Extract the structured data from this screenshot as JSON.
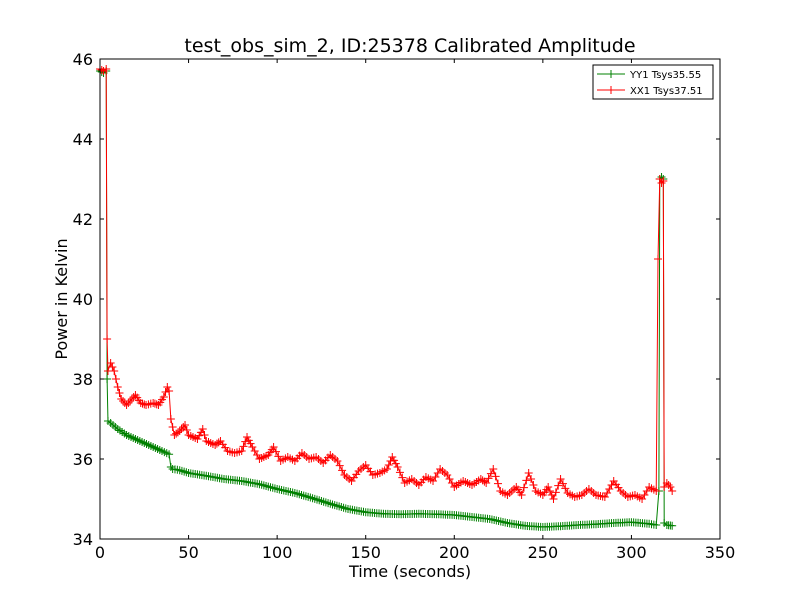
{
  "chart_data": {
    "type": "line",
    "title": "test_obs_sim_2, ID:25378 Calibrated Amplitude",
    "xlabel": "Time (seconds)",
    "ylabel": "Power in Kelvin",
    "xlim": [
      0,
      350
    ],
    "ylim": [
      34,
      46
    ],
    "xticks": [
      0,
      50,
      100,
      150,
      200,
      250,
      300,
      350
    ],
    "yticks": [
      34,
      36,
      38,
      40,
      42,
      44,
      46
    ],
    "grid": false,
    "legend_position": "top-right",
    "marker": "+",
    "series": [
      {
        "name": "YY1 Tsys35.55",
        "color": "#008000",
        "points": [
          [
            0,
            45.7
          ],
          [
            2,
            45.65
          ],
          [
            3.5,
            45.7
          ],
          [
            4,
            38.0
          ],
          [
            4.5,
            36.95
          ],
          [
            6,
            36.9
          ],
          [
            10,
            36.75
          ],
          [
            15,
            36.6
          ],
          [
            20,
            36.5
          ],
          [
            25,
            36.4
          ],
          [
            30,
            36.3
          ],
          [
            35,
            36.2
          ],
          [
            39,
            36.12
          ],
          [
            40,
            35.8
          ],
          [
            41,
            35.75
          ],
          [
            45,
            35.72
          ],
          [
            50,
            35.65
          ],
          [
            60,
            35.58
          ],
          [
            70,
            35.5
          ],
          [
            80,
            35.45
          ],
          [
            90,
            35.37
          ],
          [
            100,
            35.25
          ],
          [
            110,
            35.15
          ],
          [
            120,
            35.02
          ],
          [
            130,
            34.88
          ],
          [
            140,
            34.75
          ],
          [
            150,
            34.67
          ],
          [
            160,
            34.63
          ],
          [
            170,
            34.62
          ],
          [
            180,
            34.63
          ],
          [
            190,
            34.62
          ],
          [
            200,
            34.6
          ],
          [
            210,
            34.55
          ],
          [
            220,
            34.5
          ],
          [
            230,
            34.4
          ],
          [
            240,
            34.33
          ],
          [
            250,
            34.3
          ],
          [
            260,
            34.32
          ],
          [
            270,
            34.35
          ],
          [
            280,
            34.37
          ],
          [
            290,
            34.4
          ],
          [
            300,
            34.42
          ],
          [
            310,
            34.38
          ],
          [
            314,
            34.35
          ],
          [
            315.5,
            35.2
          ],
          [
            316,
            43.0
          ],
          [
            317,
            43.05
          ],
          [
            318,
            43.0
          ],
          [
            318.5,
            34.4
          ],
          [
            320,
            34.35
          ],
          [
            323,
            34.33
          ]
        ]
      },
      {
        "name": "XX1 Tsys37.51",
        "color": "#ff0000",
        "points": [
          [
            0,
            45.75
          ],
          [
            2,
            45.7
          ],
          [
            3.5,
            45.75
          ],
          [
            4,
            39.0
          ],
          [
            4.5,
            38.2
          ],
          [
            6,
            38.4
          ],
          [
            8,
            38.2
          ],
          [
            10,
            37.8
          ],
          [
            12,
            37.5
          ],
          [
            15,
            37.35
          ],
          [
            18,
            37.5
          ],
          [
            20,
            37.6
          ],
          [
            23,
            37.4
          ],
          [
            26,
            37.35
          ],
          [
            30,
            37.4
          ],
          [
            33,
            37.35
          ],
          [
            36,
            37.55
          ],
          [
            38,
            37.8
          ],
          [
            39,
            37.7
          ],
          [
            40,
            37.0
          ],
          [
            42,
            36.6
          ],
          [
            45,
            36.7
          ],
          [
            48,
            36.85
          ],
          [
            50,
            36.6
          ],
          [
            55,
            36.5
          ],
          [
            58,
            36.75
          ],
          [
            60,
            36.45
          ],
          [
            65,
            36.35
          ],
          [
            68,
            36.45
          ],
          [
            72,
            36.2
          ],
          [
            76,
            36.15
          ],
          [
            80,
            36.2
          ],
          [
            83,
            36.55
          ],
          [
            86,
            36.3
          ],
          [
            90,
            36.0
          ],
          [
            95,
            36.1
          ],
          [
            98,
            36.3
          ],
          [
            102,
            35.95
          ],
          [
            106,
            36.05
          ],
          [
            110,
            35.95
          ],
          [
            114,
            36.15
          ],
          [
            118,
            36.0
          ],
          [
            122,
            36.05
          ],
          [
            126,
            35.9
          ],
          [
            130,
            36.1
          ],
          [
            134,
            35.95
          ],
          [
            138,
            35.6
          ],
          [
            142,
            35.45
          ],
          [
            146,
            35.7
          ],
          [
            150,
            35.85
          ],
          [
            154,
            35.6
          ],
          [
            158,
            35.65
          ],
          [
            162,
            35.75
          ],
          [
            165,
            36.05
          ],
          [
            168,
            35.8
          ],
          [
            172,
            35.4
          ],
          [
            176,
            35.5
          ],
          [
            180,
            35.35
          ],
          [
            184,
            35.55
          ],
          [
            188,
            35.45
          ],
          [
            192,
            35.75
          ],
          [
            196,
            35.6
          ],
          [
            200,
            35.3
          ],
          [
            205,
            35.45
          ],
          [
            210,
            35.35
          ],
          [
            215,
            35.5
          ],
          [
            218,
            35.4
          ],
          [
            222,
            35.75
          ],
          [
            226,
            35.2
          ],
          [
            230,
            35.1
          ],
          [
            235,
            35.3
          ],
          [
            238,
            35.1
          ],
          [
            242,
            35.65
          ],
          [
            246,
            35.2
          ],
          [
            250,
            35.1
          ],
          [
            253,
            35.3
          ],
          [
            256,
            35.0
          ],
          [
            260,
            35.5
          ],
          [
            264,
            35.15
          ],
          [
            268,
            35.05
          ],
          [
            272,
            35.1
          ],
          [
            276,
            35.25
          ],
          [
            280,
            35.1
          ],
          [
            285,
            35.05
          ],
          [
            290,
            35.45
          ],
          [
            294,
            35.2
          ],
          [
            298,
            35.05
          ],
          [
            302,
            35.1
          ],
          [
            306,
            35.0
          ],
          [
            310,
            35.3
          ],
          [
            314,
            35.2
          ],
          [
            315,
            41.0
          ],
          [
            316,
            43.0
          ],
          [
            317,
            42.9
          ],
          [
            318,
            42.95
          ],
          [
            318.5,
            35.3
          ],
          [
            320,
            35.4
          ],
          [
            322,
            35.3
          ],
          [
            323,
            35.2
          ]
        ]
      }
    ]
  }
}
